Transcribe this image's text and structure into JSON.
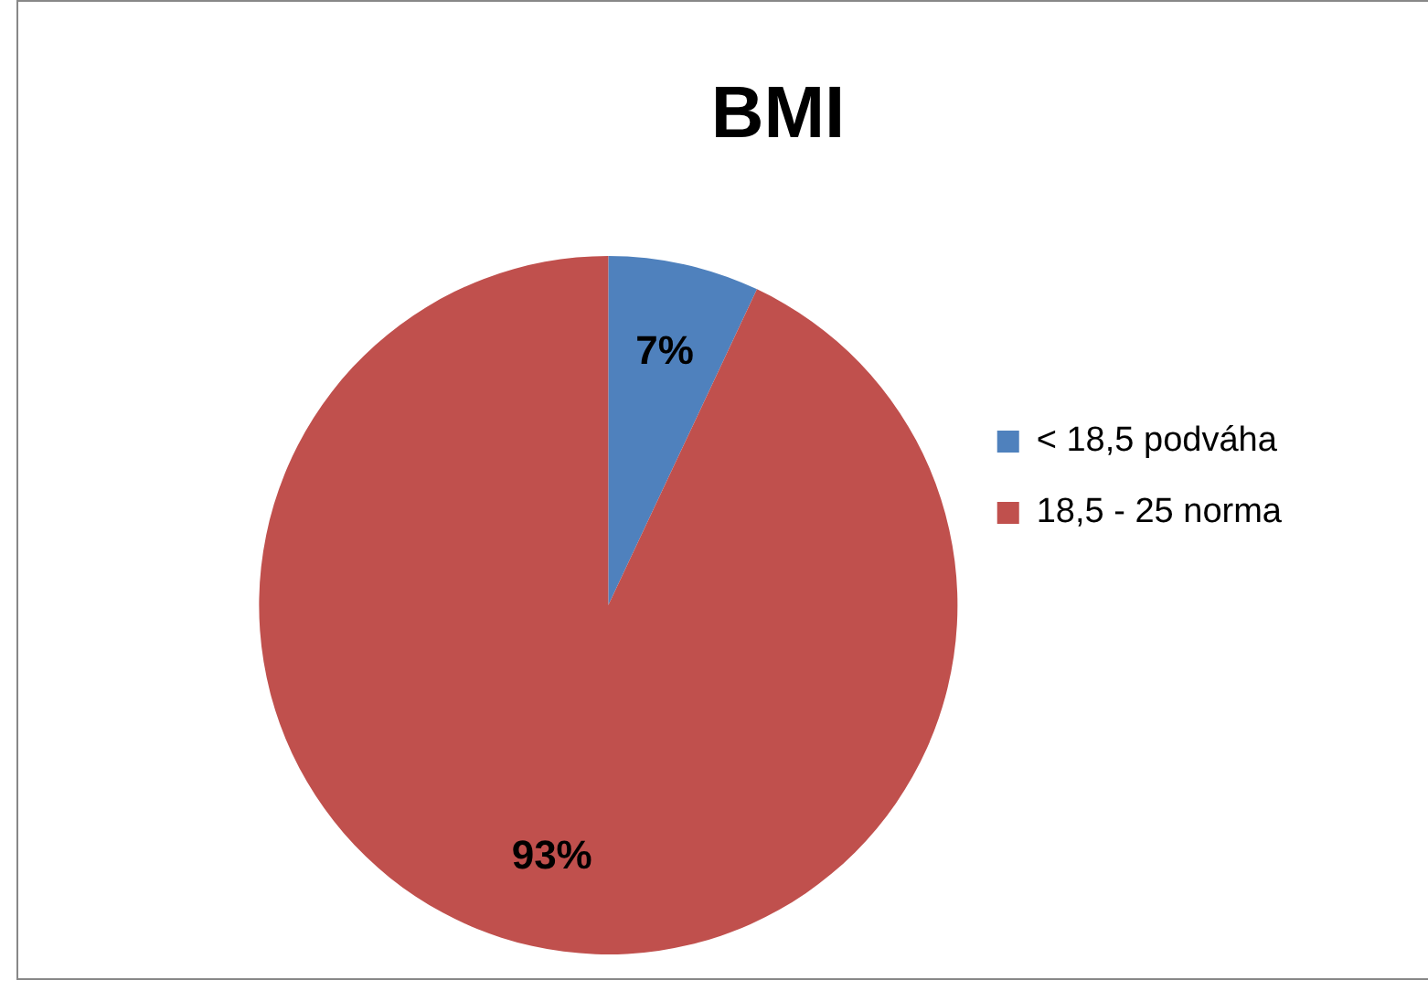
{
  "chart_data": {
    "type": "pie",
    "title": "BMI",
    "categories": [
      "< 18,5 podváha",
      "18,5 - 25 norma"
    ],
    "values": [
      7,
      93
    ],
    "colors": [
      "#4f81bd",
      "#c0504d"
    ],
    "value_labels": [
      "7%",
      "93%"
    ],
    "legend": "right"
  }
}
